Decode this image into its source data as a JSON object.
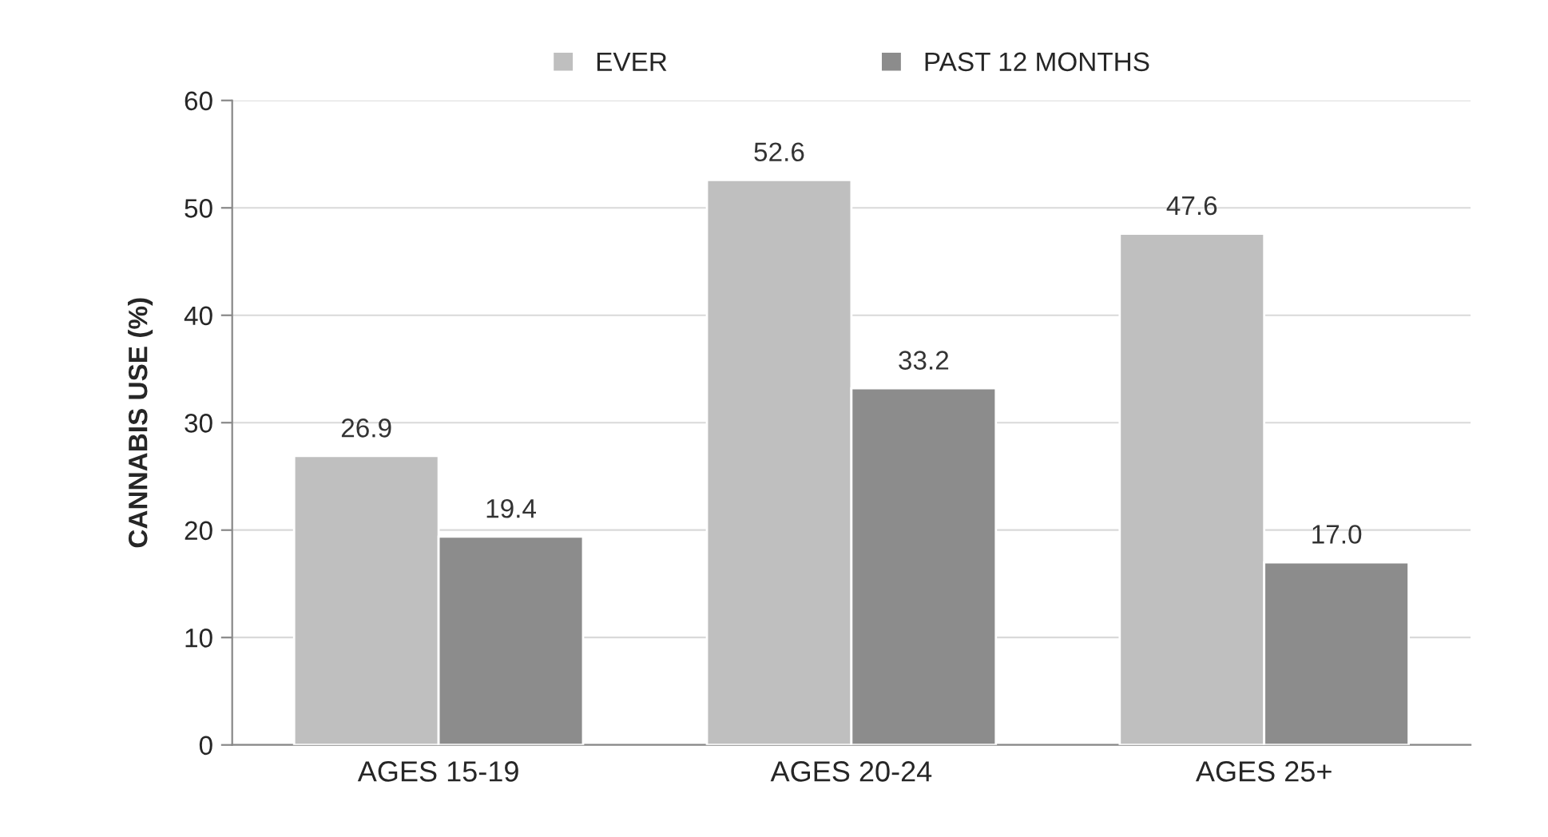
{
  "chart_data": {
    "type": "bar",
    "ylabel": "CANNABIS USE (%)",
    "categories": [
      "AGES 15-19",
      "AGES 20-24",
      "AGES 25+"
    ],
    "series": [
      {
        "name": "EVER",
        "color": "#bfbfbf",
        "values": [
          26.9,
          52.6,
          47.6
        ],
        "value_labels": [
          "26.9",
          "52.6",
          "47.6"
        ]
      },
      {
        "name": "PAST 12 MONTHS",
        "color": "#8c8c8c",
        "values": [
          19.4,
          33.2,
          17.0
        ],
        "value_labels": [
          "19.4",
          "33.2",
          "17.0"
        ]
      }
    ],
    "ylim": [
      0,
      60
    ],
    "yticks": [
      0,
      10,
      20,
      30,
      40,
      50,
      60
    ],
    "grid": "y",
    "legend": "top"
  }
}
